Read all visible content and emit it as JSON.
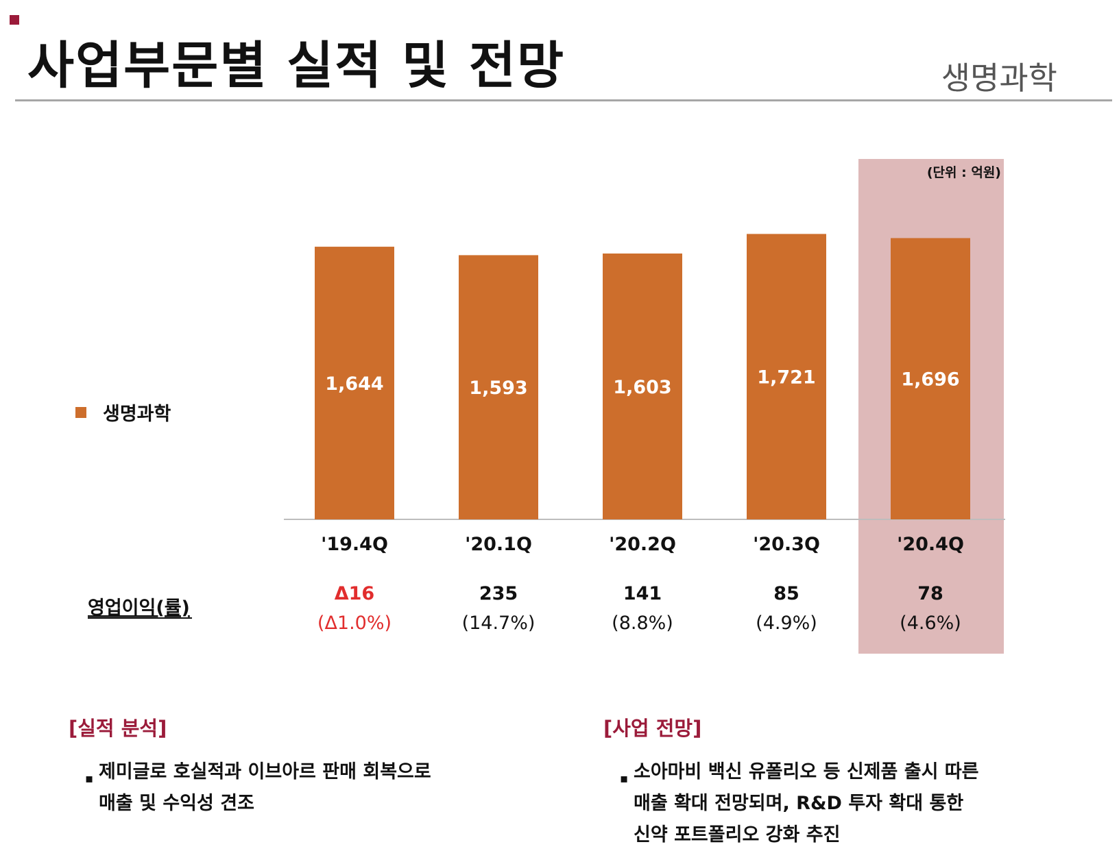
{
  "page": {
    "title": "사업부문별 실적 및 전망",
    "section_tag": "생명과학"
  },
  "colors": {
    "bar": "#cd6e2c",
    "highlight": "#deb9b9",
    "accent": "#9b1b3a",
    "negative": "#e12d2d"
  },
  "chart_data": {
    "type": "bar",
    "unit_label": "(단위 : 억원)",
    "categories": [
      "'19.4Q",
      "'20.1Q",
      "'20.2Q",
      "'20.3Q",
      "'20.4Q"
    ],
    "series": [
      {
        "name": "생명과학",
        "values": [
          1644,
          1593,
          1603,
          1721,
          1696
        ]
      }
    ],
    "value_labels": [
      "1,644",
      "1,593",
      "1,603",
      "1,721",
      "1,696"
    ],
    "ylim": [
      0,
      1950
    ],
    "highlight_category": "'20.4Q",
    "legend": "생명과학",
    "legend_position": "left",
    "operating_profit": {
      "label": "영업이익(률)",
      "values": [
        "Δ16",
        "235",
        "141",
        "85",
        "78"
      ],
      "rates": [
        "(Δ1.0%)",
        "(14.7%)",
        "(8.8%)",
        "(4.9%)",
        "(4.6%)"
      ],
      "negative": [
        true,
        false,
        false,
        false,
        false
      ]
    }
  },
  "analysis": {
    "heading": "[실적 분석]",
    "bullet_mark": "▪",
    "bullets": [
      {
        "lines": [
          "제미글로 호실적과 이브아르 판매 회복으로",
          "매출 및 수익성 견조"
        ]
      }
    ]
  },
  "outlook": {
    "heading": "[사업 전망]",
    "bullet_mark": "▪",
    "bullets": [
      {
        "lines": [
          "소아마비 백신 유폴리오 등 신제품 출시 따른",
          "매출 확대 전망되며, R&D 투자 확대 통한",
          "신약 포트폴리오 강화 추진"
        ]
      }
    ]
  }
}
